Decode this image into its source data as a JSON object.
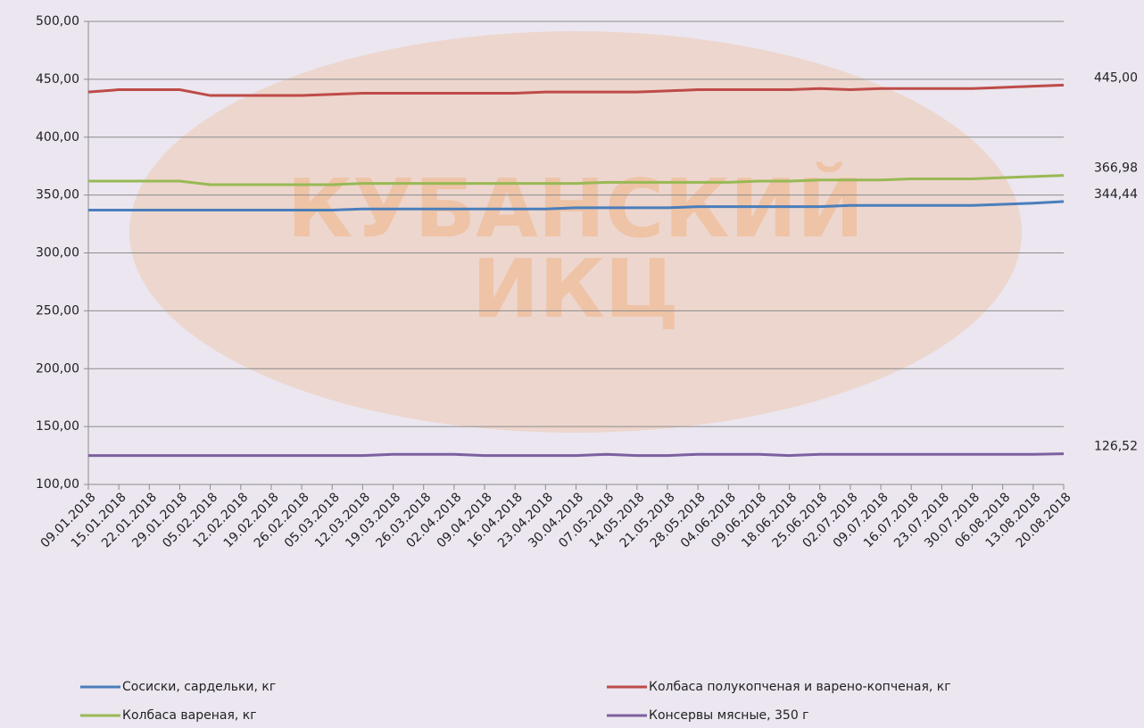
{
  "chart_data": {
    "type": "line",
    "watermark": [
      "КУБАНСКИЙ",
      "ИКЦ"
    ],
    "categories": [
      "09.01.2018",
      "15.01.2018",
      "22.01.2018",
      "29.01.2018",
      "05.02.2018",
      "12.02.2018",
      "19.02.2018",
      "26.02.2018",
      "05.03.2018",
      "12.03.2018",
      "19.03.2018",
      "26.03.2018",
      "02.04.2018",
      "09.04.2018",
      "16.04.2018",
      "23.04.2018",
      "30.04.2018",
      "07.05.2018",
      "14.05.2018",
      "21.05.2018",
      "28.05.2018",
      "04.06.2018",
      "09.06.2018",
      "18.06.2018",
      "25.06.2018",
      "02.07.2018",
      "09.07.2018",
      "16.07.2018",
      "23.07.2018",
      "30.07.2018",
      "06.08.2018",
      "13.08.2018",
      "20.08.2018"
    ],
    "series": [
      {
        "name": "Сосиски, сардельки, кг",
        "color": "#4a7ebb",
        "values": [
          337,
          337,
          337,
          337,
          337,
          337,
          337,
          337,
          337,
          338,
          338,
          338,
          338,
          338,
          338,
          338,
          339,
          339,
          339,
          339,
          340,
          340,
          340,
          340,
          340,
          341,
          341,
          341,
          341,
          341,
          342,
          343,
          344.44
        ],
        "value_labels": [
          null,
          null,
          null,
          null,
          null,
          null,
          null,
          null,
          null,
          null,
          null,
          null,
          null,
          null,
          null,
          null,
          null,
          null,
          null,
          null,
          null,
          null,
          null,
          null,
          null,
          null,
          null,
          null,
          null,
          null,
          null,
          null,
          "344,44"
        ]
      },
      {
        "name": "Колбаса полукопченая и варено-копченая, кг",
        "color": "#be4b48",
        "values": [
          439,
          441,
          441,
          441,
          436,
          436,
          436,
          436,
          437,
          438,
          438,
          438,
          438,
          438,
          438,
          439,
          439,
          439,
          439,
          440,
          441,
          441,
          441,
          441,
          442,
          441,
          442,
          442,
          442,
          442,
          443,
          444,
          445
        ],
        "value_labels": [
          null,
          null,
          null,
          null,
          null,
          null,
          null,
          null,
          null,
          null,
          null,
          null,
          null,
          null,
          null,
          null,
          null,
          null,
          null,
          null,
          null,
          null,
          null,
          null,
          null,
          null,
          null,
          null,
          null,
          null,
          null,
          null,
          "445,00"
        ]
      },
      {
        "name": "Колбаса вареная, кг",
        "color": "#98b954",
        "values": [
          362,
          362,
          362,
          362,
          359,
          359,
          359,
          359,
          359,
          360,
          360,
          360,
          360,
          360,
          360,
          360,
          360,
          361,
          361,
          361,
          361,
          361,
          362,
          362,
          363,
          363,
          363,
          364,
          364,
          364,
          365,
          366,
          366.98
        ],
        "value_labels": [
          null,
          null,
          null,
          null,
          null,
          null,
          null,
          null,
          null,
          null,
          null,
          null,
          null,
          null,
          null,
          null,
          null,
          null,
          null,
          null,
          null,
          null,
          null,
          null,
          null,
          null,
          null,
          null,
          null,
          null,
          null,
          null,
          "366,98"
        ]
      },
      {
        "name": "Консервы мясные, 350 г",
        "color": "#7d60a0",
        "values": [
          125,
          125,
          125,
          125,
          125,
          125,
          125,
          125,
          125,
          125,
          126,
          126,
          126,
          125,
          125,
          125,
          125,
          126,
          125,
          125,
          126,
          126,
          126,
          125,
          126,
          126,
          126,
          126,
          126,
          126,
          126,
          126,
          126.52
        ],
        "value_labels": [
          null,
          null,
          null,
          null,
          null,
          null,
          null,
          null,
          null,
          null,
          null,
          null,
          null,
          null,
          null,
          null,
          null,
          null,
          null,
          null,
          null,
          null,
          null,
          null,
          null,
          null,
          null,
          null,
          null,
          null,
          null,
          null,
          "126,52"
        ]
      }
    ],
    "ylim": [
      100,
      500
    ],
    "yticks": [
      {
        "value": 100,
        "label": "100,00"
      },
      {
        "value": 150,
        "label": "150,00"
      },
      {
        "value": 200,
        "label": "200,00"
      },
      {
        "value": 250,
        "label": "250,00"
      },
      {
        "value": 300,
        "label": "300,00"
      },
      {
        "value": 350,
        "label": "350,00"
      },
      {
        "value": 400,
        "label": "400,00"
      },
      {
        "value": 450,
        "label": "450,00"
      },
      {
        "value": 500,
        "label": "500,00"
      }
    ],
    "grid": true,
    "legend": "bottom"
  }
}
